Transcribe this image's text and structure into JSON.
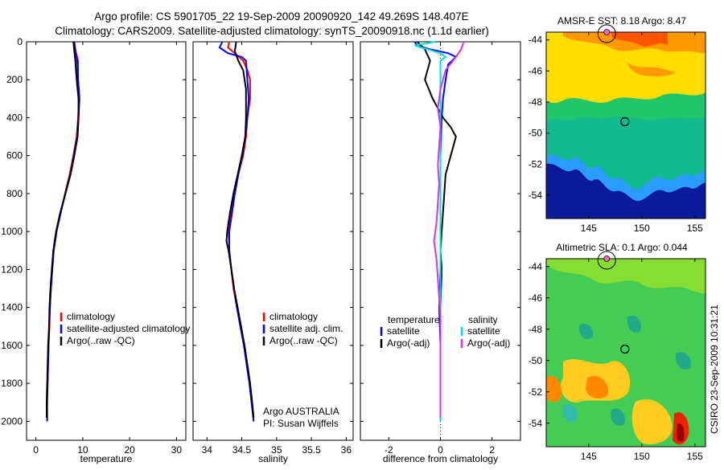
{
  "header": {
    "line1": "Argo profile: CS 5901705_22 19-Sep-2009 20090920_142 49.269S 148.407E",
    "line2": "Climatology: CARS2009. Satellite-adjusted climatology: synTS_20090918.nc (1.1d earlier)"
  },
  "chart_data": [
    {
      "type": "line",
      "id": "temperature",
      "xlabel": "temperature",
      "xlim": [
        -2,
        32
      ],
      "ylim": [
        0,
        2100
      ],
      "y_reversed": true,
      "xticks": [
        0,
        10,
        20,
        30
      ],
      "yticks": [
        0,
        200,
        400,
        600,
        800,
        1000,
        1200,
        1400,
        1600,
        1800,
        2000
      ],
      "legend": [
        "climatology",
        "satellite-adjusted climatology",
        "Argo(..raw -QC)"
      ],
      "series": [
        {
          "name": "climatology",
          "color": "#ff0000",
          "points": [
            [
              8.2,
              0
            ],
            [
              8.5,
              50
            ],
            [
              9.0,
              100
            ],
            [
              9.0,
              200
            ],
            [
              9.2,
              300
            ],
            [
              9.0,
              400
            ],
            [
              8.7,
              500
            ],
            [
              8.0,
              600
            ],
            [
              7.2,
              700
            ],
            [
              6.2,
              800
            ],
            [
              5.3,
              900
            ],
            [
              4.4,
              1000
            ],
            [
              3.8,
              1100
            ],
            [
              3.5,
              1200
            ],
            [
              3.2,
              1300
            ],
            [
              3.0,
              1400
            ],
            [
              2.9,
              1500
            ],
            [
              2.7,
              1600
            ],
            [
              2.6,
              1700
            ],
            [
              2.5,
              1800
            ],
            [
              2.4,
              1900
            ],
            [
              2.4,
              2000
            ]
          ]
        },
        {
          "name": "satellite-adjusted climatology",
          "color": "#0000ff",
          "points": [
            [
              8.2,
              0
            ],
            [
              8.4,
              50
            ],
            [
              8.8,
              100
            ],
            [
              9.0,
              200
            ],
            [
              9.3,
              300
            ],
            [
              9.1,
              400
            ],
            [
              8.8,
              500
            ],
            [
              8.1,
              600
            ],
            [
              7.3,
              700
            ],
            [
              6.3,
              800
            ],
            [
              5.3,
              900
            ],
            [
              4.4,
              1000
            ],
            [
              3.8,
              1100
            ],
            [
              3.5,
              1200
            ],
            [
              3.2,
              1300
            ],
            [
              3.0,
              1400
            ],
            [
              2.8,
              1500
            ],
            [
              2.7,
              1600
            ],
            [
              2.6,
              1700
            ],
            [
              2.5,
              1800
            ],
            [
              2.4,
              1900
            ],
            [
              2.4,
              2000
            ]
          ]
        },
        {
          "name": "Argo(..raw -QC)",
          "color": "#000000",
          "points": [
            [
              8.0,
              0
            ],
            [
              8.2,
              50
            ],
            [
              8.4,
              100
            ],
            [
              8.7,
              200
            ],
            [
              9.1,
              300
            ],
            [
              9.1,
              400
            ],
            [
              8.9,
              500
            ],
            [
              8.2,
              600
            ],
            [
              7.4,
              700
            ],
            [
              6.3,
              800
            ],
            [
              5.2,
              900
            ],
            [
              4.3,
              1000
            ],
            [
              3.7,
              1100
            ],
            [
              3.4,
              1200
            ],
            [
              3.1,
              1300
            ],
            [
              2.9,
              1400
            ],
            [
              2.8,
              1500
            ],
            [
              2.6,
              1600
            ],
            [
              2.5,
              1700
            ],
            [
              2.4,
              1800
            ],
            [
              2.3,
              1900
            ],
            [
              2.3,
              1980
            ]
          ]
        }
      ]
    },
    {
      "type": "line",
      "id": "salinity",
      "xlabel": "salinity",
      "xlim": [
        33.8,
        36.1
      ],
      "ylim": [
        0,
        2100
      ],
      "y_reversed": true,
      "xticks": [
        34,
        34.5,
        35,
        35.5,
        36
      ],
      "xticklabels": [
        "34",
        "34.5",
        "35",
        "35.5",
        "36"
      ],
      "legend": [
        "climatology",
        "satellite adj. clim.",
        "Argo(..raw -QC)"
      ],
      "annotation": [
        "Argo AUSTRALIA",
        "PI: Susan Wijffels"
      ],
      "series": [
        {
          "name": "climatology",
          "color": "#ff0000",
          "points": [
            [
              34.32,
              0
            ],
            [
              34.3,
              30
            ],
            [
              34.4,
              60
            ],
            [
              34.52,
              100
            ],
            [
              34.58,
              150
            ],
            [
              34.62,
              200
            ],
            [
              34.62,
              300
            ],
            [
              34.58,
              400
            ],
            [
              34.56,
              500
            ],
            [
              34.52,
              600
            ],
            [
              34.45,
              700
            ],
            [
              34.4,
              800
            ],
            [
              34.35,
              900
            ],
            [
              34.31,
              1000
            ],
            [
              34.32,
              1100
            ],
            [
              34.35,
              1200
            ],
            [
              34.38,
              1300
            ],
            [
              34.43,
              1400
            ],
            [
              34.48,
              1500
            ],
            [
              34.53,
              1600
            ],
            [
              34.57,
              1700
            ],
            [
              34.61,
              1800
            ],
            [
              34.64,
              1900
            ],
            [
              34.67,
              2000
            ]
          ]
        },
        {
          "name": "satellite adj. clim.",
          "color": "#0000ff",
          "points": [
            [
              34.22,
              0
            ],
            [
              34.18,
              30
            ],
            [
              34.3,
              60
            ],
            [
              34.5,
              80
            ],
            [
              34.56,
              100
            ],
            [
              34.58,
              200
            ],
            [
              34.6,
              300
            ],
            [
              34.58,
              400
            ],
            [
              34.55,
              500
            ],
            [
              34.51,
              600
            ],
            [
              34.45,
              700
            ],
            [
              34.4,
              800
            ],
            [
              34.36,
              900
            ],
            [
              34.32,
              1000
            ],
            [
              34.32,
              1100
            ],
            [
              34.35,
              1200
            ],
            [
              34.39,
              1300
            ],
            [
              34.43,
              1400
            ],
            [
              34.48,
              1500
            ],
            [
              34.53,
              1600
            ],
            [
              34.57,
              1700
            ],
            [
              34.61,
              1800
            ],
            [
              34.64,
              1900
            ],
            [
              34.67,
              2000
            ]
          ]
        },
        {
          "name": "Argo(..raw -QC)",
          "color": "#000000",
          "points": [
            [
              34.42,
              0
            ],
            [
              34.4,
              50
            ],
            [
              34.45,
              100
            ],
            [
              34.52,
              150
            ],
            [
              34.56,
              250
            ],
            [
              34.56,
              300
            ],
            [
              34.56,
              400
            ],
            [
              34.55,
              500
            ],
            [
              34.5,
              600
            ],
            [
              34.44,
              700
            ],
            [
              34.38,
              800
            ],
            [
              34.33,
              900
            ],
            [
              34.29,
              1000
            ],
            [
              34.28,
              1050
            ],
            [
              34.31,
              1100
            ],
            [
              34.35,
              1200
            ],
            [
              34.39,
              1300
            ],
            [
              34.44,
              1400
            ],
            [
              34.49,
              1500
            ],
            [
              34.54,
              1600
            ],
            [
              34.58,
              1700
            ],
            [
              34.62,
              1800
            ],
            [
              34.65,
              1900
            ],
            [
              34.67,
              1980
            ]
          ]
        }
      ]
    },
    {
      "type": "line",
      "id": "difference",
      "xlabel": "difference from climatology",
      "xlim": [
        -3.1,
        3.1
      ],
      "ylim": [
        0,
        2100
      ],
      "y_reversed": true,
      "xticks": [
        -2,
        0,
        2
      ],
      "legend_left_title": "temperature",
      "legend_right_title": "salinity",
      "legend_left": [
        "satellite",
        "Argo(-adj)"
      ],
      "legend_right": [
        "satellite",
        "Argo(-adj)"
      ],
      "series": [
        {
          "name": "temperature satellite",
          "color": "#0000ff",
          "points": [
            [
              -1.0,
              0
            ],
            [
              -0.9,
              20
            ],
            [
              -0.4,
              40
            ],
            [
              0.3,
              60
            ],
            [
              0.6,
              80
            ],
            [
              0.3,
              120
            ],
            [
              0.2,
              200
            ],
            [
              0.1,
              300
            ],
            [
              0.05,
              400
            ],
            [
              0.0,
              600
            ],
            [
              0.0,
              800
            ],
            [
              0.0,
              1000
            ],
            [
              0.0,
              1200
            ],
            [
              -0.05,
              1400
            ],
            [
              0.0,
              1600
            ],
            [
              0.0,
              1800
            ],
            [
              0.0,
              2000
            ]
          ]
        },
        {
          "name": "temperature Argo(-adj)",
          "color": "#000000",
          "points": [
            [
              -0.9,
              0
            ],
            [
              -0.6,
              40
            ],
            [
              -0.4,
              100
            ],
            [
              -0.6,
              200
            ],
            [
              -0.3,
              300
            ],
            [
              0.1,
              400
            ],
            [
              0.4,
              450
            ],
            [
              0.6,
              500
            ],
            [
              0.4,
              600
            ],
            [
              0.2,
              700
            ],
            [
              0.15,
              800
            ],
            [
              0.1,
              900
            ],
            [
              0.05,
              1000
            ],
            [
              0.0,
              1100
            ],
            [
              0.05,
              1200
            ],
            [
              0.0,
              1400
            ],
            [
              0.0,
              1600
            ],
            [
              0.0,
              1800
            ],
            [
              0.0,
              1980
            ]
          ]
        },
        {
          "name": "salinity satellite",
          "color": "#00e0e0",
          "points": [
            [
              -0.2,
              0
            ],
            [
              -0.6,
              10
            ],
            [
              -1.0,
              20
            ],
            [
              -0.5,
              40
            ],
            [
              0.0,
              60
            ],
            [
              0.2,
              80
            ],
            [
              0.0,
              100
            ],
            [
              0.0,
              200
            ],
            [
              0.0,
              300
            ],
            [
              0.0,
              400
            ],
            [
              0.0,
              600
            ],
            [
              0.0,
              800
            ],
            [
              0.0,
              1000
            ],
            [
              0.0,
              1200
            ],
            [
              0.0,
              1400
            ],
            [
              0.0,
              1600
            ],
            [
              0.0,
              1800
            ],
            [
              0.0,
              2000
            ]
          ]
        },
        {
          "name": "salinity Argo(-adj)",
          "color": "#dd33dd",
          "points": [
            [
              0.9,
              0
            ],
            [
              0.8,
              40
            ],
            [
              0.6,
              80
            ],
            [
              0.2,
              150
            ],
            [
              0.0,
              250
            ],
            [
              -0.1,
              350
            ],
            [
              0.0,
              450
            ],
            [
              -0.05,
              550
            ],
            [
              -0.1,
              650
            ],
            [
              -0.05,
              750
            ],
            [
              -0.1,
              850
            ],
            [
              -0.15,
              950
            ],
            [
              -0.25,
              1050
            ],
            [
              -0.15,
              1150
            ],
            [
              -0.1,
              1250
            ],
            [
              -0.05,
              1350
            ],
            [
              0.0,
              1450
            ],
            [
              0.0,
              1600
            ],
            [
              0.0,
              1800
            ],
            [
              0.0,
              1980
            ]
          ]
        }
      ]
    },
    {
      "type": "heatmap",
      "id": "sst-map",
      "title": "AMSR-E SST: 8.18 Argo: 8.47",
      "xlim": [
        141,
        156
      ],
      "ylim": [
        -55.5,
        -43.5
      ],
      "xticks": [
        145,
        150,
        155
      ],
      "yticks": [
        -44,
        -46,
        -48,
        -50,
        -52,
        -54
      ],
      "float_position": [
        148.407,
        -49.269
      ]
    },
    {
      "type": "heatmap",
      "id": "sla-map",
      "title": "Altimetric SLA: 0.1 Argo: 0.044",
      "xlim": [
        141,
        156
      ],
      "ylim": [
        -55.5,
        -43.5
      ],
      "xticks": [
        145,
        150,
        155
      ],
      "yticks": [
        -44,
        -46,
        -48,
        -50,
        -52,
        -54
      ],
      "float_position": [
        148.407,
        -49.269
      ]
    }
  ],
  "footer": {
    "stamp": "CSIRO 23-Sep-2009 10:31:21"
  }
}
